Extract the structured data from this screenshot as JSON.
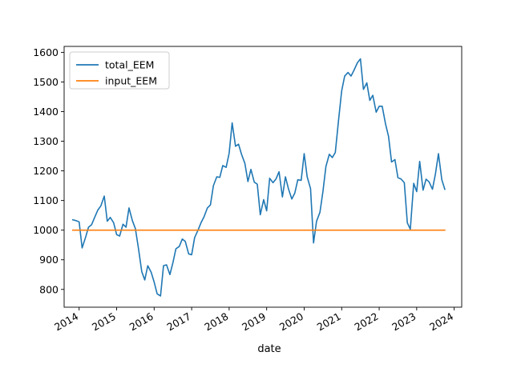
{
  "chart_data": {
    "type": "line",
    "title": "",
    "xlabel": "date",
    "ylabel": "",
    "xlim": [
      2013.6,
      2024.2
    ],
    "ylim": [
      740,
      1620
    ],
    "grid": false,
    "legend_position": "top-left",
    "x_ticks": [
      {
        "label": "2014",
        "value": 2014
      },
      {
        "label": "2015",
        "value": 2015
      },
      {
        "label": "2016",
        "value": 2016
      },
      {
        "label": "2017",
        "value": 2017
      },
      {
        "label": "2018",
        "value": 2018
      },
      {
        "label": "2019",
        "value": 2019
      },
      {
        "label": "2020",
        "value": 2020
      },
      {
        "label": "2021",
        "value": 2021
      },
      {
        "label": "2022",
        "value": 2022
      },
      {
        "label": "2023",
        "value": 2023
      },
      {
        "label": "2024",
        "value": 2024
      }
    ],
    "y_ticks": [
      {
        "label": "800",
        "value": 800
      },
      {
        "label": "900",
        "value": 900
      },
      {
        "label": "1000",
        "value": 1000
      },
      {
        "label": "1100",
        "value": 1100
      },
      {
        "label": "1200",
        "value": 1200
      },
      {
        "label": "1300",
        "value": 1300
      },
      {
        "label": "1400",
        "value": 1400
      },
      {
        "label": "1500",
        "value": 1500
      },
      {
        "label": "1600",
        "value": 1600
      }
    ],
    "series": [
      {
        "name": "total_EEM",
        "color": "#1f77b4",
        "x": [
          2013.83,
          2013.92,
          2014.0,
          2014.08,
          2014.17,
          2014.25,
          2014.33,
          2014.42,
          2014.5,
          2014.58,
          2014.67,
          2014.75,
          2014.83,
          2014.92,
          2015.0,
          2015.08,
          2015.17,
          2015.25,
          2015.33,
          2015.42,
          2015.5,
          2015.58,
          2015.67,
          2015.75,
          2015.83,
          2015.92,
          2016.0,
          2016.08,
          2016.17,
          2016.25,
          2016.33,
          2016.42,
          2016.5,
          2016.58,
          2016.67,
          2016.75,
          2016.83,
          2016.92,
          2017.0,
          2017.08,
          2017.17,
          2017.25,
          2017.33,
          2017.42,
          2017.5,
          2017.58,
          2017.67,
          2017.75,
          2017.83,
          2017.92,
          2018.0,
          2018.08,
          2018.17,
          2018.25,
          2018.33,
          2018.42,
          2018.5,
          2018.58,
          2018.67,
          2018.75,
          2018.83,
          2018.92,
          2019.0,
          2019.08,
          2019.17,
          2019.25,
          2019.33,
          2019.42,
          2019.5,
          2019.58,
          2019.67,
          2019.75,
          2019.83,
          2019.92,
          2020.0,
          2020.08,
          2020.17,
          2020.25,
          2020.33,
          2020.42,
          2020.5,
          2020.58,
          2020.67,
          2020.75,
          2020.83,
          2020.92,
          2021.0,
          2021.08,
          2021.17,
          2021.25,
          2021.33,
          2021.42,
          2021.5,
          2021.58,
          2021.67,
          2021.75,
          2021.83,
          2021.92,
          2022.0,
          2022.08,
          2022.17,
          2022.25,
          2022.33,
          2022.42,
          2022.5,
          2022.58,
          2022.67,
          2022.75,
          2022.83,
          2022.92,
          2023.0,
          2023.08,
          2023.17,
          2023.25,
          2023.33,
          2023.42,
          2023.5,
          2023.58,
          2023.67,
          2023.75
        ],
        "values": [
          1035,
          1032,
          1028,
          940,
          975,
          1010,
          1018,
          1045,
          1068,
          1082,
          1115,
          1030,
          1043,
          1025,
          985,
          980,
          1020,
          1010,
          1075,
          1032,
          1005,
          940,
          860,
          832,
          880,
          858,
          825,
          785,
          778,
          880,
          883,
          850,
          890,
          937,
          945,
          970,
          962,
          920,
          917,
          975,
          1000,
          1025,
          1045,
          1075,
          1085,
          1150,
          1180,
          1178,
          1218,
          1212,
          1260,
          1362,
          1283,
          1290,
          1256,
          1225,
          1164,
          1205,
          1162,
          1155,
          1052,
          1103,
          1065,
          1175,
          1160,
          1173,
          1197,
          1112,
          1180,
          1140,
          1105,
          1125,
          1170,
          1168,
          1258,
          1180,
          1140,
          957,
          1030,
          1060,
          1130,
          1215,
          1256,
          1245,
          1262,
          1375,
          1470,
          1520,
          1532,
          1520,
          1540,
          1565,
          1578,
          1475,
          1497,
          1438,
          1455,
          1398,
          1418,
          1418,
          1358,
          1316,
          1230,
          1238,
          1177,
          1173,
          1160,
          1025,
          1003,
          1158,
          1130,
          1232,
          1135,
          1172,
          1163,
          1138,
          1190,
          1258,
          1170,
          1138
        ]
      },
      {
        "name": "input_EEM",
        "color": "#ff7f0e",
        "x": [
          2013.83,
          2023.75
        ],
        "values": [
          1000,
          1000
        ]
      }
    ]
  }
}
